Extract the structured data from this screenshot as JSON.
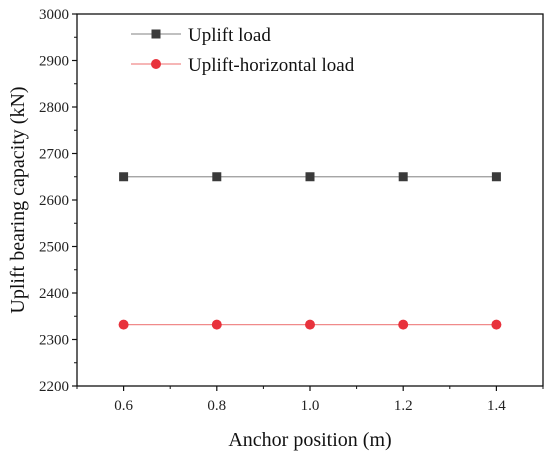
{
  "chart_data": {
    "type": "line",
    "xlabel": "Anchor position (m)",
    "ylabel": "Uplift bearing capacity (kN)",
    "x": [
      0.6,
      0.8,
      1.0,
      1.2,
      1.4
    ],
    "x_ticks": [
      "0.6",
      "0.8",
      "1.0",
      "1.2",
      "1.4"
    ],
    "xlim": [
      0.5,
      1.5
    ],
    "ylim": [
      2200,
      3000
    ],
    "y_ticks": [
      "2200",
      "2300",
      "2400",
      "2500",
      "2600",
      "2700",
      "2800",
      "2900",
      "3000"
    ],
    "grid": false,
    "legend_position": "top-left",
    "series": [
      {
        "name": "Uplift load",
        "values": [
          2650,
          2650,
          2650,
          2650,
          2650
        ],
        "color": "#3a3a3a",
        "line_color": "#9a9a9a",
        "marker": "square"
      },
      {
        "name": "Uplift-horizontal load",
        "values": [
          2332,
          2332,
          2332,
          2332,
          2332
        ],
        "color": "#e8323c",
        "line_color": "#f08a8a",
        "marker": "circle"
      }
    ]
  }
}
